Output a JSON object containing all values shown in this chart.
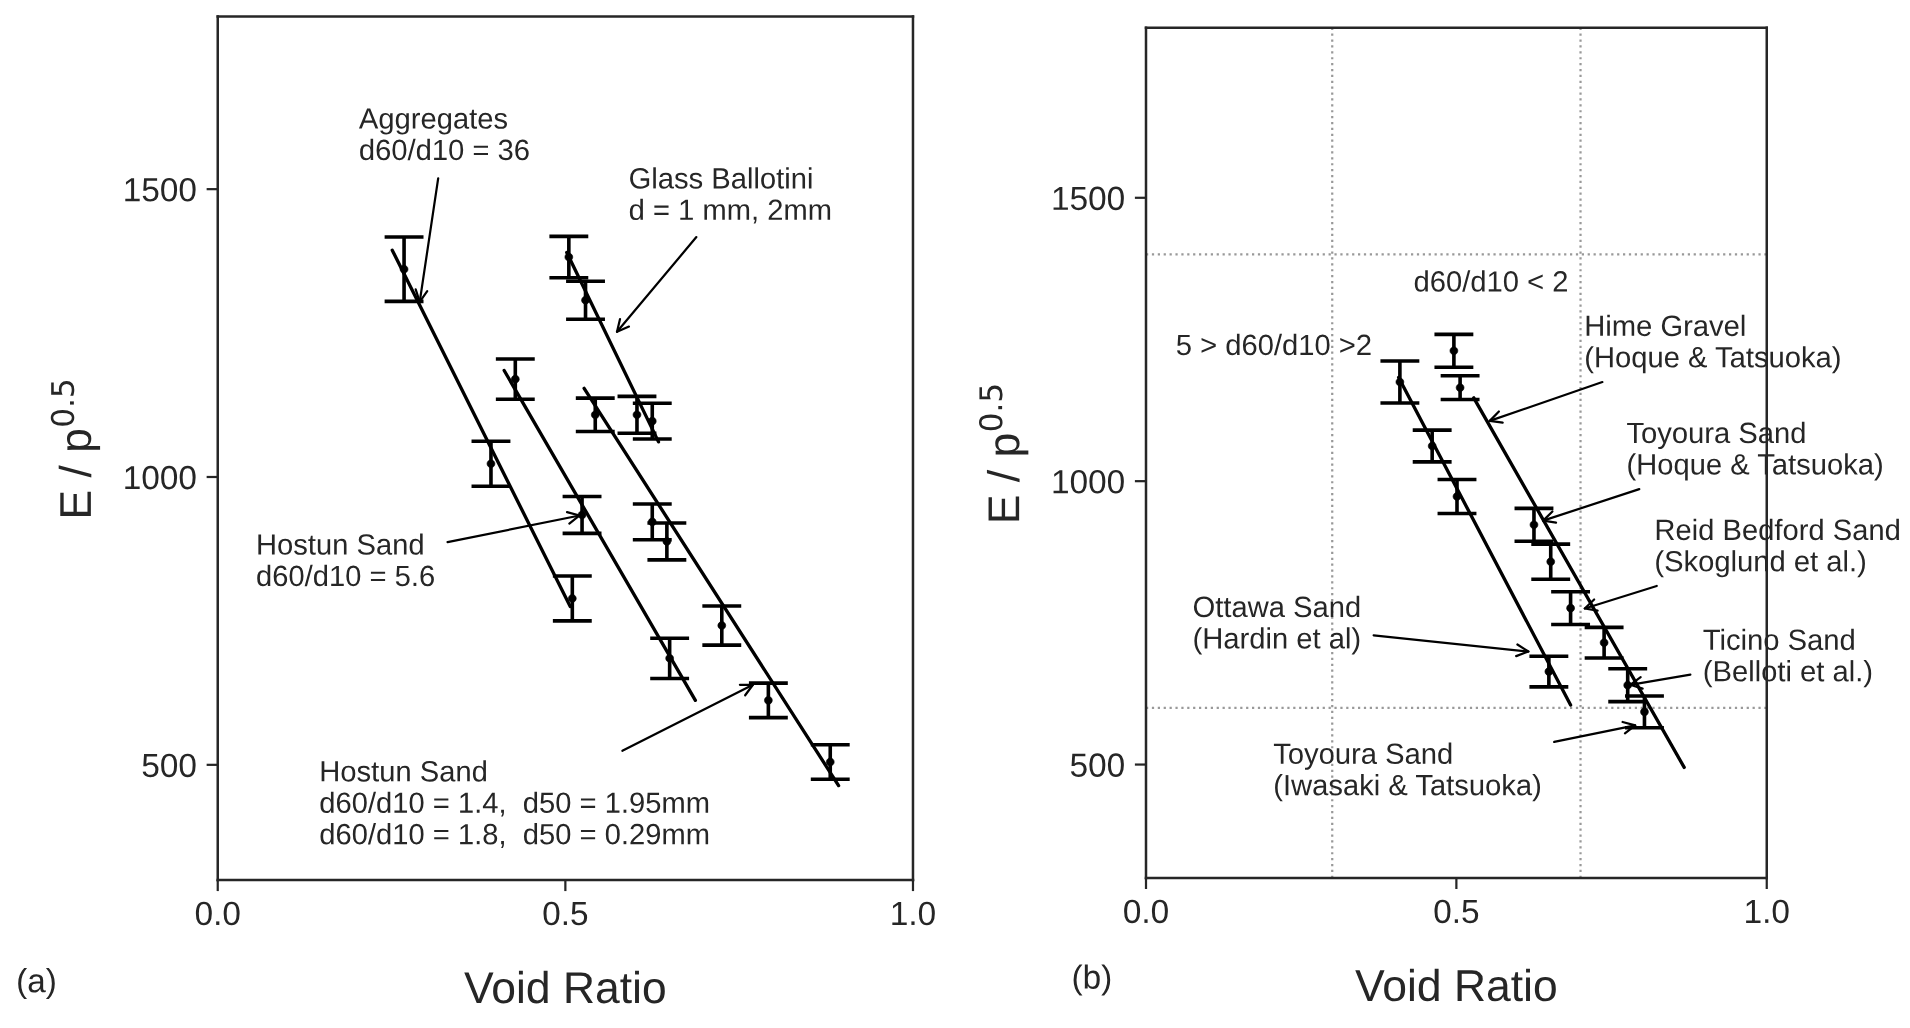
{
  "chart_data": [
    {
      "type": "scatter",
      "xlabel": "Void Ratio",
      "ylabel": "E / p$^{0.5}$",
      "xlim": [
        0,
        1
      ],
      "ylim": [
        300,
        1800
      ],
      "xticks": [
        {
          "value": 0,
          "label": "0.0"
        },
        {
          "value": 0.5,
          "label": "0.5"
        },
        {
          "value": 1,
          "label": "1.0"
        }
      ],
      "yticks": [
        500,
        1000,
        1500
      ],
      "grid": false,
      "legend": false,
      "series": [
        {
          "color": "#000000",
          "marker": "circle",
          "x": [
            0.268,
            0.393,
            0.51
          ],
          "values": [
            1361,
            1023,
            789
          ],
          "errors": [
            56,
            39,
            39
          ]
        },
        {
          "type": "line",
          "color": "#000000",
          "x": [
            0.251,
            0.507
          ],
          "values": [
            1394,
            775
          ]
        },
        {
          "color": "#000000",
          "marker": "circle",
          "x": [
            0.428,
            0.524,
            0.65
          ],
          "values": [
            1170,
            934,
            685
          ],
          "errors": [
            35,
            32,
            35
          ]
        },
        {
          "type": "line",
          "color": "#000000",
          "x": [
            0.412,
            0.687
          ],
          "values": [
            1185,
            612
          ]
        },
        {
          "color": "#000000",
          "marker": "circle",
          "x": [
            0.505,
            0.529,
            0.603,
            0.625
          ],
          "values": [
            1382,
            1307,
            1108,
            1097
          ],
          "errors": [
            36,
            33,
            32,
            31
          ]
        },
        {
          "type": "line",
          "color": "#000000",
          "x": [
            0.502,
            0.634
          ],
          "values": [
            1390,
            1061
          ]
        },
        {
          "color": "#000000",
          "marker": "circle",
          "x": [
            0.543,
            0.625,
            0.646,
            0.725,
            0.792,
            0.881
          ],
          "values": [
            1108,
            922,
            888,
            742,
            612,
            505
          ],
          "errors": [
            29,
            31,
            32,
            34,
            30,
            30
          ]
        },
        {
          "type": "line",
          "color": "#000000",
          "x": [
            0.527,
            0.893
          ],
          "values": [
            1154,
            464
          ]
        }
      ],
      "annotations": [
        "(a)",
        {
          "text": "Aggregates\nd60/d10 = 36",
          "x": 0.29,
          "y": 1300
        },
        {
          "text": "Glass Ballotini\nd = 1 mm, 2mm",
          "x": 0.572,
          "y": 1249
        },
        {
          "text": "Hostun Sand\nd60/d10 = 5.6",
          "x": 0.524,
          "y": 934
        },
        {
          "text": "Hostun Sand\nd60/d10 = 1.4,  d50 = 1.95mm\nd60/d10 = 1.8,  d50 = 0.29mm",
          "x": 0.773,
          "y": 641
        }
      ]
    },
    {
      "type": "scatter",
      "xlabel": "Void Ratio",
      "ylabel": "E / p$^{0.5}$",
      "xlim": [
        0,
        1
      ],
      "ylim": [
        300,
        1800
      ],
      "xticks": [
        {
          "value": 0,
          "label": "0.0"
        },
        {
          "value": 0.5,
          "label": "0.5"
        },
        {
          "value": 1,
          "label": "1.0"
        }
      ],
      "yticks": [
        500,
        1000,
        1500
      ],
      "grid": false,
      "legend": false,
      "ref_lines": [
        {
          "axis": "x",
          "value": 0.3,
          "color": "#999999",
          "line_style": "dotted"
        },
        {
          "axis": "x",
          "value": 0.7,
          "color": "#999999",
          "line_style": "dotted"
        },
        {
          "axis": "y",
          "value": 600,
          "color": "#999999",
          "line_style": "dotted"
        },
        {
          "axis": "y",
          "value": 1400,
          "color": "#999999",
          "line_style": "dotted"
        }
      ],
      "series": [
        {
          "color": "#000000",
          "marker": "circle",
          "x": [
            0.409,
            0.461,
            0.501,
            0.649
          ],
          "values": [
            1175,
            1062,
            973,
            664
          ],
          "errors": [
            37,
            28,
            30,
            27
          ]
        },
        {
          "type": "line",
          "color": "#000000",
          "x": [
            0.407,
            0.684
          ],
          "values": [
            1183,
            605
          ]
        },
        {
          "color": "#000000",
          "marker": "circle",
          "x": [
            0.496,
            0.506,
            0.625,
            0.652,
            0.684,
            0.738,
            0.776,
            0.803
          ],
          "values": [
            1230,
            1165,
            923,
            858,
            776,
            715,
            640,
            593
          ],
          "errors": [
            29,
            21,
            29,
            31,
            29,
            27,
            29,
            28
          ]
        },
        {
          "type": "line",
          "color": "#000000",
          "x": [
            0.528,
            0.867
          ],
          "values": [
            1147,
            495
          ]
        }
      ],
      "annotations": [
        "(b)",
        "d60/d10 < 2",
        "5 > d60/d10 >2",
        {
          "text": "Hime Gravel\n(Hoque & Tatsuoka)",
          "x": 0.55,
          "y": 1105
        },
        {
          "text": "Toyoura Sand\n(Hoque & Tatsuoka)",
          "x": 0.636,
          "y": 929
        },
        {
          "text": "Reid Bedford Sand\n(Skoglund et al.)",
          "x": 0.703,
          "y": 774
        },
        {
          "text": "Ticino Sand\n(Belloti et al.)",
          "x": 0.776,
          "y": 640
        },
        {
          "text": "Ottawa Sand\n(Hardin et al)",
          "x": 0.62,
          "y": 699
        },
        {
          "text": "Toyoura Sand\n(Iwasaki & Tatsuoka)",
          "x": 0.792,
          "y": 570
        }
      ]
    }
  ]
}
